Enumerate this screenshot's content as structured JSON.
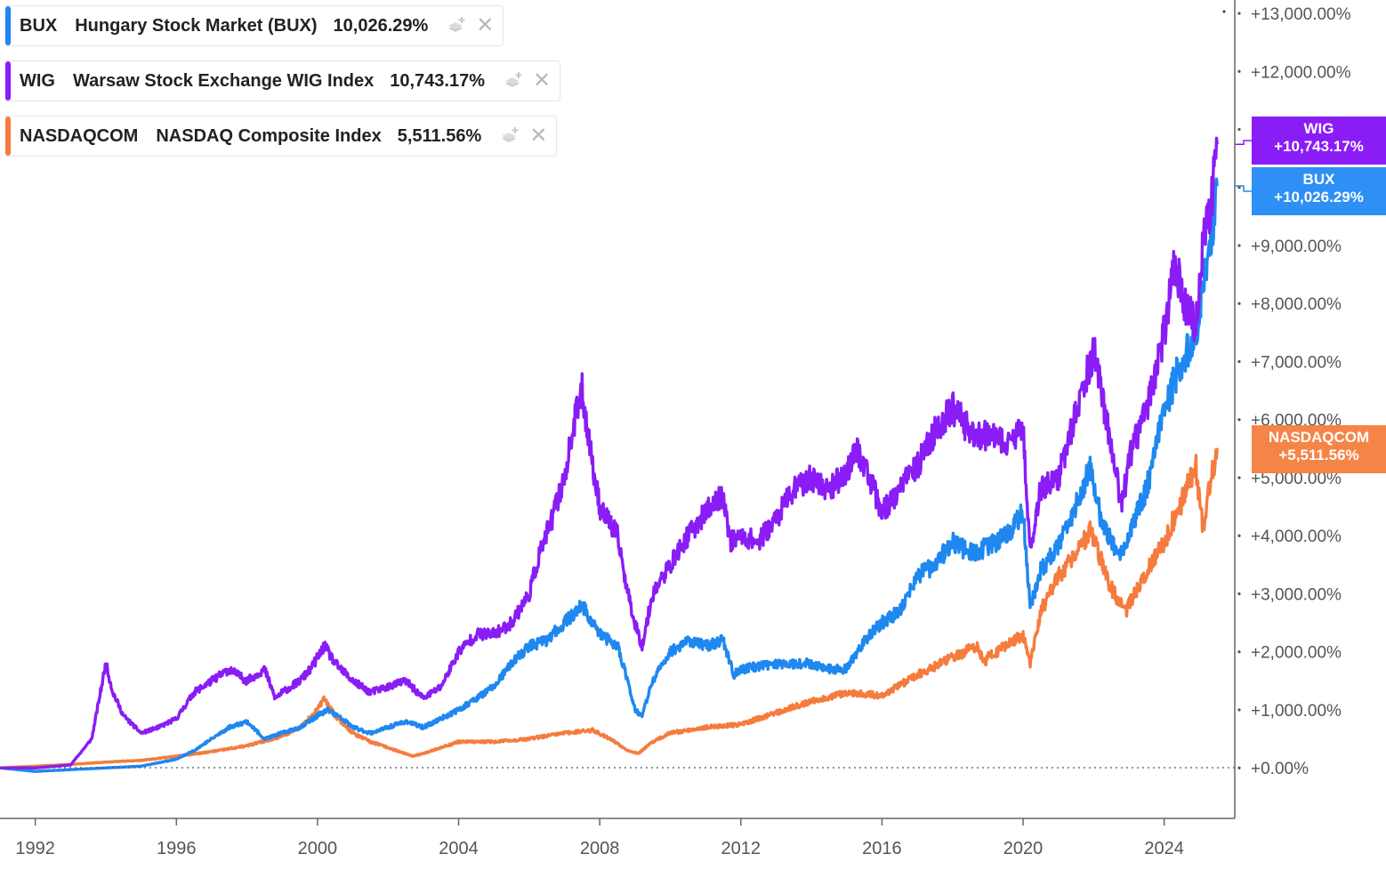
{
  "legend": [
    {
      "symbol": "BUX",
      "name": "Hungary Stock Market (BUX)",
      "value": "10,026.29%",
      "color": "#1e88f0"
    },
    {
      "symbol": "WIG",
      "name": "Warsaw Stock Exchange WIG Index",
      "value": "10,743.17%",
      "color": "#8a1cf5"
    },
    {
      "symbol": "NASDAQCOM",
      "name": "NASDAQ Composite Index",
      "value": "5,511.56%",
      "color": "#f57c3e"
    }
  ],
  "end_labels": [
    {
      "symbol": "WIG",
      "value": "+10,743.17%",
      "color": "#8a1cf5"
    },
    {
      "symbol": "BUX",
      "value": "+10,026.29%",
      "color": "#2e8ff5"
    },
    {
      "symbol": "NASDAQCOM",
      "value": "+5,511.56%",
      "color": "#f58447"
    }
  ],
  "chart_data": {
    "type": "line",
    "x_ticks": [
      1992,
      1996,
      2000,
      2004,
      2008,
      2012,
      2016,
      2020,
      2024
    ],
    "x_range": [
      1991.0,
      2026.0
    ],
    "y_ticks": [
      {
        "v": 0,
        "label": "+0.00%"
      },
      {
        "v": 1000,
        "label": "+1,000.00%"
      },
      {
        "v": 2000,
        "label": "+2,000.00%"
      },
      {
        "v": 3000,
        "label": "+3,000.00%"
      },
      {
        "v": 4000,
        "label": "+4,000.00%"
      },
      {
        "v": 5000,
        "label": "+5,000.00%"
      },
      {
        "v": 6000,
        "label": "+6,000.00%"
      },
      {
        "v": 7000,
        "label": "+7,000.00%"
      },
      {
        "v": 8000,
        "label": "+8,000.00%"
      },
      {
        "v": 9000,
        "label": "+9,000.00%"
      },
      {
        "v": 10000,
        "label": "+10,000.00%"
      },
      {
        "v": 11000,
        "label": "+11,000.00%"
      },
      {
        "v": 12000,
        "label": "+12,000.00%"
      },
      {
        "v": 13000,
        "label": "+13,000.00%"
      }
    ],
    "y_range": [
      -870,
      13230
    ],
    "zero_line": "dotted",
    "grid": false,
    "legend_position": "top-left",
    "series": [
      {
        "name": "WIG",
        "color": "#8a1cf5",
        "points": [
          [
            1991.0,
            0
          ],
          [
            1992.0,
            0
          ],
          [
            1993.0,
            50
          ],
          [
            1993.6,
            500
          ],
          [
            1994.0,
            1800
          ],
          [
            1994.2,
            1300
          ],
          [
            1994.5,
            900
          ],
          [
            1995.0,
            600
          ],
          [
            1995.5,
            700
          ],
          [
            1996.0,
            850
          ],
          [
            1996.5,
            1300
          ],
          [
            1997.0,
            1500
          ],
          [
            1997.5,
            1700
          ],
          [
            1998.0,
            1500
          ],
          [
            1998.5,
            1700
          ],
          [
            1998.8,
            1200
          ],
          [
            1999.0,
            1300
          ],
          [
            1999.5,
            1500
          ],
          [
            1999.8,
            1700
          ],
          [
            2000.2,
            2100
          ],
          [
            2000.5,
            1800
          ],
          [
            2001.0,
            1500
          ],
          [
            2001.5,
            1300
          ],
          [
            2002.0,
            1400
          ],
          [
            2002.5,
            1500
          ],
          [
            2003.0,
            1200
          ],
          [
            2003.5,
            1400
          ],
          [
            2004.0,
            2000
          ],
          [
            2004.5,
            2300
          ],
          [
            2005.0,
            2300
          ],
          [
            2005.5,
            2500
          ],
          [
            2006.0,
            3000
          ],
          [
            2006.3,
            3700
          ],
          [
            2006.6,
            4200
          ],
          [
            2007.0,
            5000
          ],
          [
            2007.3,
            6000
          ],
          [
            2007.5,
            6500
          ],
          [
            2007.8,
            5200
          ],
          [
            2008.0,
            4500
          ],
          [
            2008.5,
            4000
          ],
          [
            2008.8,
            3000
          ],
          [
            2009.0,
            2500
          ],
          [
            2009.2,
            2100
          ],
          [
            2009.5,
            3000
          ],
          [
            2010.0,
            3500
          ],
          [
            2010.5,
            4000
          ],
          [
            2011.0,
            4400
          ],
          [
            2011.5,
            4700
          ],
          [
            2011.7,
            3900
          ],
          [
            2012.0,
            4000
          ],
          [
            2012.5,
            3900
          ],
          [
            2013.0,
            4300
          ],
          [
            2013.5,
            4800
          ],
          [
            2014.0,
            5000
          ],
          [
            2014.5,
            4800
          ],
          [
            2015.0,
            5100
          ],
          [
            2015.3,
            5500
          ],
          [
            2015.7,
            4900
          ],
          [
            2016.0,
            4400
          ],
          [
            2016.5,
            4800
          ],
          [
            2017.0,
            5200
          ],
          [
            2017.5,
            5800
          ],
          [
            2018.0,
            6200
          ],
          [
            2018.5,
            5800
          ],
          [
            2019.0,
            5700
          ],
          [
            2019.5,
            5600
          ],
          [
            2020.0,
            5800
          ],
          [
            2020.2,
            3800
          ],
          [
            2020.5,
            4800
          ],
          [
            2021.0,
            5000
          ],
          [
            2021.5,
            6100
          ],
          [
            2022.0,
            7200
          ],
          [
            2022.3,
            6200
          ],
          [
            2022.6,
            5200
          ],
          [
            2022.8,
            4500
          ],
          [
            2023.0,
            5300
          ],
          [
            2023.5,
            6200
          ],
          [
            2024.0,
            7500
          ],
          [
            2024.3,
            8700
          ],
          [
            2024.6,
            8000
          ],
          [
            2024.9,
            7600
          ],
          [
            2025.1,
            9000
          ],
          [
            2025.3,
            9500
          ],
          [
            2025.5,
            10743
          ]
        ]
      },
      {
        "name": "BUX",
        "color": "#1e88f0",
        "points": [
          [
            1991.0,
            0
          ],
          [
            1992.0,
            -60
          ],
          [
            1993.0,
            -30
          ],
          [
            1994.0,
            0
          ],
          [
            1995.0,
            30
          ],
          [
            1996.0,
            150
          ],
          [
            1996.5,
            300
          ],
          [
            1997.0,
            500
          ],
          [
            1997.5,
            700
          ],
          [
            1998.0,
            800
          ],
          [
            1998.5,
            500
          ],
          [
            1999.0,
            600
          ],
          [
            1999.5,
            700
          ],
          [
            2000.0,
            900
          ],
          [
            2000.3,
            1000
          ],
          [
            2000.8,
            800
          ],
          [
            2001.0,
            700
          ],
          [
            2001.5,
            600
          ],
          [
            2002.0,
            700
          ],
          [
            2002.5,
            800
          ],
          [
            2003.0,
            700
          ],
          [
            2003.5,
            850
          ],
          [
            2004.0,
            1000
          ],
          [
            2004.5,
            1200
          ],
          [
            2005.0,
            1400
          ],
          [
            2005.5,
            1800
          ],
          [
            2006.0,
            2100
          ],
          [
            2006.5,
            2200
          ],
          [
            2007.0,
            2500
          ],
          [
            2007.5,
            2800
          ],
          [
            2007.8,
            2500
          ],
          [
            2008.0,
            2300
          ],
          [
            2008.5,
            2100
          ],
          [
            2008.8,
            1500
          ],
          [
            2009.0,
            1000
          ],
          [
            2009.2,
            900
          ],
          [
            2009.5,
            1500
          ],
          [
            2010.0,
            2000
          ],
          [
            2010.5,
            2200
          ],
          [
            2011.0,
            2100
          ],
          [
            2011.5,
            2200
          ],
          [
            2011.8,
            1600
          ],
          [
            2012.0,
            1700
          ],
          [
            2013.0,
            1800
          ],
          [
            2014.0,
            1800
          ],
          [
            2014.5,
            1700
          ],
          [
            2015.0,
            1700
          ],
          [
            2015.5,
            2200
          ],
          [
            2016.0,
            2500
          ],
          [
            2016.5,
            2700
          ],
          [
            2017.0,
            3300
          ],
          [
            2017.5,
            3500
          ],
          [
            2018.0,
            3900
          ],
          [
            2018.5,
            3700
          ],
          [
            2019.0,
            3800
          ],
          [
            2019.5,
            4000
          ],
          [
            2020.0,
            4400
          ],
          [
            2020.2,
            2800
          ],
          [
            2020.5,
            3400
          ],
          [
            2021.0,
            3800
          ],
          [
            2021.5,
            4500
          ],
          [
            2021.9,
            5200
          ],
          [
            2022.2,
            4300
          ],
          [
            2022.5,
            3900
          ],
          [
            2022.8,
            3700
          ],
          [
            2023.0,
            4000
          ],
          [
            2023.5,
            4800
          ],
          [
            2024.0,
            6200
          ],
          [
            2024.5,
            7000
          ],
          [
            2024.9,
            7500
          ],
          [
            2025.1,
            8200
          ],
          [
            2025.3,
            9000
          ],
          [
            2025.5,
            10026
          ]
        ]
      },
      {
        "name": "NASDAQCOM",
        "color": "#f57c3e",
        "points": [
          [
            1991.0,
            0
          ],
          [
            1992.0,
            30
          ],
          [
            1993.0,
            60
          ],
          [
            1994.0,
            100
          ],
          [
            1995.0,
            130
          ],
          [
            1996.0,
            200
          ],
          [
            1997.0,
            280
          ],
          [
            1998.0,
            380
          ],
          [
            1999.0,
            550
          ],
          [
            1999.5,
            700
          ],
          [
            2000.0,
            1000
          ],
          [
            2000.2,
            1200
          ],
          [
            2000.5,
            900
          ],
          [
            2001.0,
            600
          ],
          [
            2001.5,
            450
          ],
          [
            2002.0,
            350
          ],
          [
            2002.7,
            200
          ],
          [
            2003.0,
            250
          ],
          [
            2003.5,
            350
          ],
          [
            2004.0,
            450
          ],
          [
            2005.0,
            450
          ],
          [
            2006.0,
            500
          ],
          [
            2007.0,
            600
          ],
          [
            2007.8,
            650
          ],
          [
            2008.3,
            500
          ],
          [
            2008.8,
            300
          ],
          [
            2009.1,
            250
          ],
          [
            2009.5,
            450
          ],
          [
            2010.0,
            600
          ],
          [
            2011.0,
            700
          ],
          [
            2012.0,
            750
          ],
          [
            2013.0,
            950
          ],
          [
            2014.0,
            1150
          ],
          [
            2015.0,
            1300
          ],
          [
            2016.0,
            1250
          ],
          [
            2017.0,
            1600
          ],
          [
            2018.0,
            1900
          ],
          [
            2018.7,
            2100
          ],
          [
            2018.9,
            1800
          ],
          [
            2019.0,
            1900
          ],
          [
            2019.5,
            2100
          ],
          [
            2020.0,
            2300
          ],
          [
            2020.2,
            1800
          ],
          [
            2020.5,
            2700
          ],
          [
            2021.0,
            3300
          ],
          [
            2021.5,
            3700
          ],
          [
            2021.9,
            4100
          ],
          [
            2022.2,
            3600
          ],
          [
            2022.5,
            3100
          ],
          [
            2022.9,
            2700
          ],
          [
            2023.0,
            2800
          ],
          [
            2023.5,
            3400
          ],
          [
            2024.0,
            3900
          ],
          [
            2024.5,
            4600
          ],
          [
            2024.9,
            5200
          ],
          [
            2025.1,
            4100
          ],
          [
            2025.3,
            4900
          ],
          [
            2025.5,
            5512
          ]
        ]
      }
    ]
  }
}
